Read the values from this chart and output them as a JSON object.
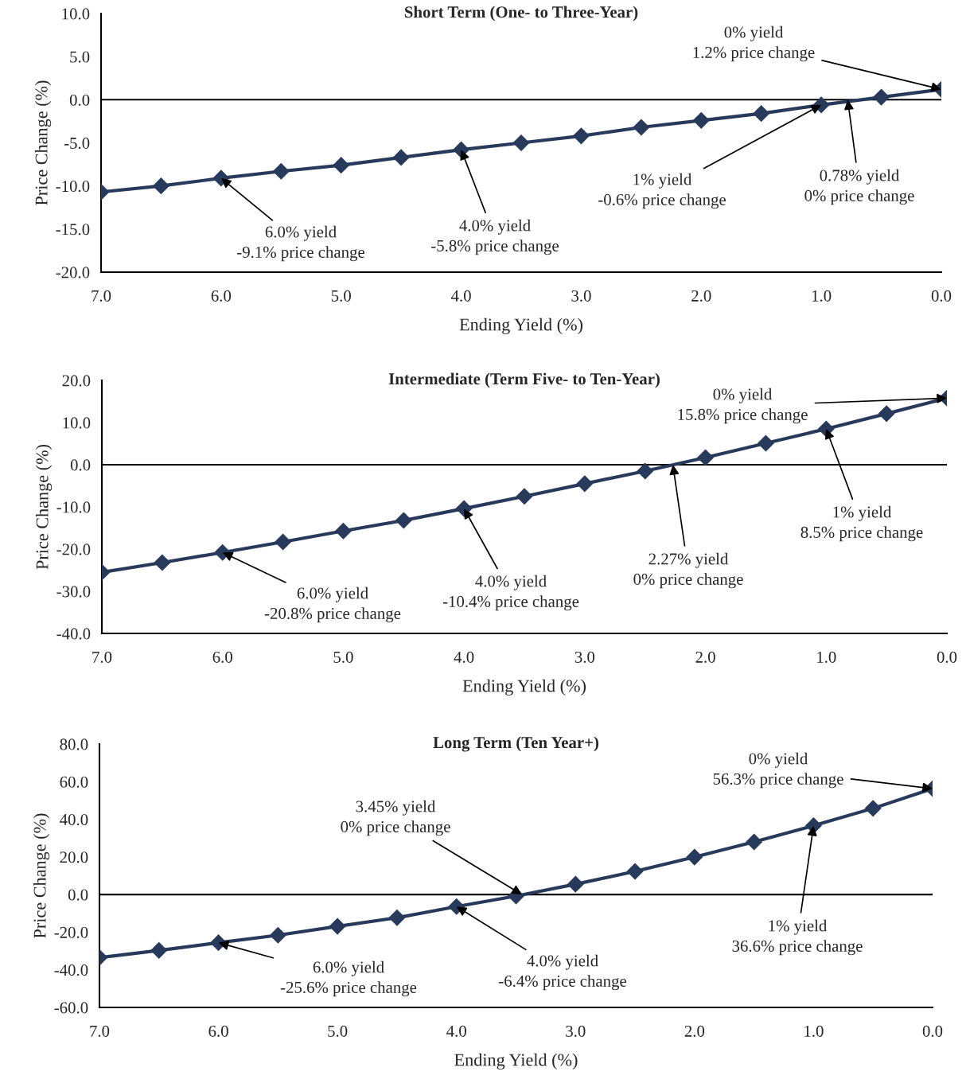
{
  "chart_data": [
    {
      "type": "line",
      "title": "Short Term (One- to Three-Year)",
      "xlabel": "Ending Yield (%)",
      "ylabel": "Price Change (%)",
      "x": [
        7.0,
        6.5,
        6.0,
        5.5,
        5.0,
        4.5,
        4.0,
        3.5,
        3.0,
        2.5,
        2.0,
        1.5,
        1.0,
        0.5,
        0.0
      ],
      "series": [
        {
          "color": "#283a5c",
          "values": [
            -10.7,
            -10.0,
            -9.1,
            -8.3,
            -7.6,
            -6.7,
            -5.8,
            -5.0,
            -4.2,
            -3.2,
            -2.4,
            -1.6,
            -0.6,
            0.3,
            1.2
          ]
        }
      ],
      "xlim": [
        7.0,
        0.0
      ],
      "xticks": [
        {
          "value": 7,
          "label": "7.0"
        },
        {
          "value": 6,
          "label": "6.0"
        },
        {
          "value": 5,
          "label": "5.0"
        },
        {
          "value": 4,
          "label": "4.0"
        },
        {
          "value": 3,
          "label": "3.0"
        },
        {
          "value": 2,
          "label": "2.0"
        },
        {
          "value": 1,
          "label": "1.0"
        },
        {
          "value": 0,
          "label": "0.0"
        }
      ],
      "ylim": [
        -20,
        10
      ],
      "yticks": [
        {
          "value": -20,
          "label": "-20.0"
        },
        {
          "value": -15,
          "label": "-15.0"
        },
        {
          "value": -10,
          "label": "-10.0"
        },
        {
          "value": -5,
          "label": "-5.0"
        },
        {
          "value": 0,
          "label": "0.0"
        },
        {
          "value": 5,
          "label": "5.0"
        },
        {
          "value": 10,
          "label": "10.0"
        }
      ],
      "ref_lines": [
        {
          "axis": "y",
          "value": 0,
          "color": "#000000"
        }
      ],
      "annotations": [
        {
          "text": "0% yield\n1.2% price change",
          "x": 0.0,
          "y": 1.2
        },
        {
          "text": "1% yield\n-0.6% price change",
          "x": 1.0,
          "y": -0.6
        },
        {
          "text": "0.78% yield\n0% price change",
          "x": 0.78,
          "y": 0
        },
        {
          "text": "4.0% yield\n-5.8% price change",
          "x": 4.0,
          "y": -5.8
        },
        {
          "text": "6.0% yield\n-9.1% price change",
          "x": 6.0,
          "y": -9.1
        }
      ],
      "marker": "diamond",
      "line_style": "solid",
      "grid": false,
      "legend": false
    },
    {
      "type": "line",
      "title": "Intermediate (Term Five- to Ten-Year)",
      "xlabel": "Ending Yield (%)",
      "ylabel": "Price Change (%)",
      "x": [
        7.0,
        6.5,
        6.0,
        5.5,
        5.0,
        4.5,
        4.0,
        3.5,
        3.0,
        2.5,
        2.0,
        1.5,
        1.0,
        0.5,
        0.0
      ],
      "series": [
        {
          "color": "#283a5c",
          "values": [
            -25.5,
            -23.2,
            -20.8,
            -18.3,
            -15.7,
            -13.2,
            -10.4,
            -7.5,
            -4.5,
            -1.5,
            1.7,
            5.1,
            8.5,
            12.1,
            15.8
          ]
        }
      ],
      "xlim": [
        7.0,
        0.0
      ],
      "xticks": [
        {
          "value": 7,
          "label": "7.0"
        },
        {
          "value": 6,
          "label": "6.0"
        },
        {
          "value": 5,
          "label": "5.0"
        },
        {
          "value": 4,
          "label": "4.0"
        },
        {
          "value": 3,
          "label": "3.0"
        },
        {
          "value": 2,
          "label": "2.0"
        },
        {
          "value": 1,
          "label": "1.0"
        },
        {
          "value": 0,
          "label": "0.0"
        }
      ],
      "ylim": [
        -40,
        20
      ],
      "yticks": [
        {
          "value": -40,
          "label": "-40.0"
        },
        {
          "value": -30,
          "label": "-30.0"
        },
        {
          "value": -20,
          "label": "-20.0"
        },
        {
          "value": -10,
          "label": "-10.0"
        },
        {
          "value": 0,
          "label": "0.0"
        },
        {
          "value": 10,
          "label": "10.0"
        },
        {
          "value": 20,
          "label": "20.0"
        }
      ],
      "ref_lines": [
        {
          "axis": "y",
          "value": 0,
          "color": "#000000"
        }
      ],
      "annotations": [
        {
          "text": "0% yield\n15.8% price change",
          "x": 0.0,
          "y": 15.8
        },
        {
          "text": "1% yield\n8.5% price change",
          "x": 1.0,
          "y": 8.5
        },
        {
          "text": "2.27% yield\n0% price change",
          "x": 2.27,
          "y": 0
        },
        {
          "text": "4.0% yield\n-10.4% price change",
          "x": 4.0,
          "y": -10.4
        },
        {
          "text": "6.0% yield\n-20.8% price change",
          "x": 6.0,
          "y": -20.8
        }
      ],
      "marker": "diamond",
      "line_style": "solid",
      "grid": false,
      "legend": false
    },
    {
      "type": "line",
      "title": "Long Term (Ten Year+)",
      "xlabel": "Ending Yield (%)",
      "ylabel": "Price Change (%)",
      "x": [
        7.0,
        6.5,
        6.0,
        5.5,
        5.0,
        4.5,
        4.0,
        3.5,
        3.0,
        2.5,
        2.0,
        1.5,
        1.0,
        0.5,
        0.0
      ],
      "series": [
        {
          "color": "#283a5c",
          "values": [
            -33.5,
            -29.7,
            -25.6,
            -21.6,
            -16.9,
            -12.3,
            -6.4,
            -0.8,
            5.5,
            12.3,
            19.9,
            28.0,
            36.6,
            45.8,
            56.3
          ]
        }
      ],
      "xlim": [
        7.0,
        0.0
      ],
      "xticks": [
        {
          "value": 7,
          "label": "7.0"
        },
        {
          "value": 6,
          "label": "6.0"
        },
        {
          "value": 5,
          "label": "5.0"
        },
        {
          "value": 4,
          "label": "4.0"
        },
        {
          "value": 3,
          "label": "3.0"
        },
        {
          "value": 2,
          "label": "2.0"
        },
        {
          "value": 1,
          "label": "1.0"
        },
        {
          "value": 0,
          "label": "0.0"
        }
      ],
      "ylim": [
        -60,
        80
      ],
      "yticks": [
        {
          "value": -60,
          "label": "-60.0"
        },
        {
          "value": -40,
          "label": "-40.0"
        },
        {
          "value": -20,
          "label": "-20.0"
        },
        {
          "value": 0,
          "label": "0.0"
        },
        {
          "value": 20,
          "label": "20.0"
        },
        {
          "value": 40,
          "label": "40.0"
        },
        {
          "value": 60,
          "label": "60.0"
        },
        {
          "value": 80,
          "label": "80.0"
        }
      ],
      "ref_lines": [
        {
          "axis": "y",
          "value": 0,
          "color": "#000000"
        }
      ],
      "annotations": [
        {
          "text": "0% yield\n56.3% price change",
          "x": 0.0,
          "y": 56.3
        },
        {
          "text": "1% yield\n36.6% price change",
          "x": 1.0,
          "y": 36.6
        },
        {
          "text": "3.45% yield\n0% price change",
          "x": 3.45,
          "y": 0
        },
        {
          "text": "4.0% yield\n-6.4% price change",
          "x": 4.0,
          "y": -6.4
        },
        {
          "text": "6.0% yield\n-25.6% price change",
          "x": 6.0,
          "y": -25.6
        }
      ],
      "marker": "diamond",
      "line_style": "solid",
      "grid": false,
      "legend": false
    }
  ]
}
